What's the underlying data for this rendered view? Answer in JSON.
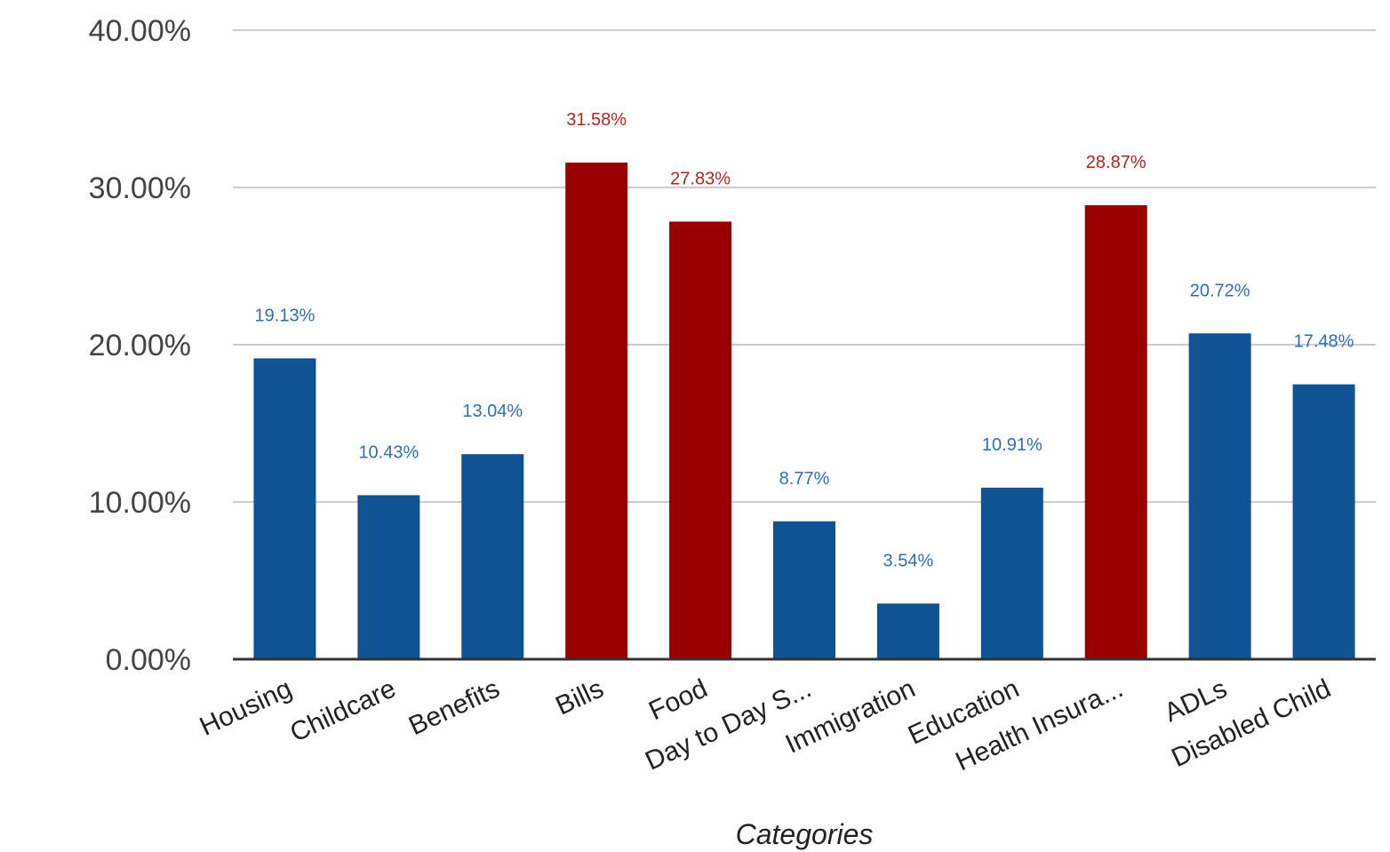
{
  "chart_data": {
    "type": "bar",
    "title": "",
    "xlabel": "Categories",
    "ylabel": "",
    "ylim": [
      0,
      40
    ],
    "yticks": [
      "0.00%",
      "10.00%",
      "20.00%",
      "30.00%",
      "40.00%"
    ],
    "grid": true,
    "legend": "none",
    "colors": {
      "normal": "#0f5394",
      "highlight": "#990000"
    },
    "categories": [
      "Housing",
      "Childcare",
      "Benefits",
      "Bills",
      "Food",
      "Day to Day S...",
      "Immigration",
      "Education",
      "Health Insura...",
      "ADLs",
      "Disabled Child"
    ],
    "values": [
      19.13,
      10.43,
      13.04,
      31.58,
      27.83,
      8.77,
      3.54,
      10.91,
      28.87,
      20.72,
      17.48
    ],
    "value_labels": [
      "19.13%",
      "10.43%",
      "13.04%",
      "31.58%",
      "27.83%",
      "8.77%",
      "3.54%",
      "10.91%",
      "28.87%",
      "20.72%",
      "17.48%"
    ],
    "highlighted": [
      false,
      false,
      false,
      true,
      true,
      false,
      false,
      false,
      true,
      false,
      false
    ]
  }
}
